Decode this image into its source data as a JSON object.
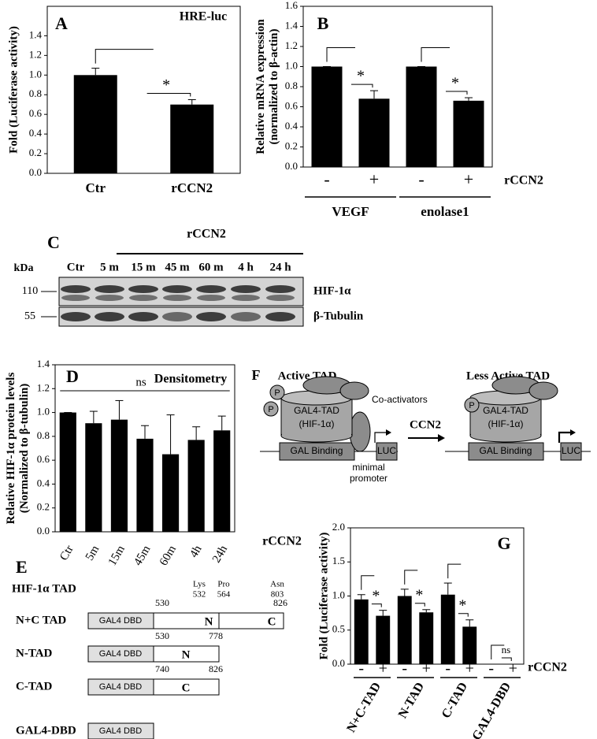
{
  "chart_data": [
    {
      "type": "bar",
      "panel": "A",
      "title": "HRE-luc",
      "y_label": [
        "Fold (Luciferase activity)"
      ],
      "categories": [
        "Ctr",
        "rCCN2"
      ],
      "values": [
        1.0,
        0.7
      ],
      "errors": [
        0.07,
        0.05
      ],
      "significance": [
        null,
        "*"
      ],
      "color": "#000000",
      "ylim": [
        0,
        1.7
      ],
      "yticks": [
        {
          "value": 0,
          "label": "0.0"
        },
        0.2,
        0.4,
        0.6,
        0.8,
        {
          "value": 1,
          "label": "1.0"
        },
        1.2,
        1.4
      ]
    },
    {
      "type": "bar",
      "panel": "B",
      "y_label": [
        "Relative mRNA expression",
        "(normalized to β-actin)"
      ],
      "categories": [
        "-",
        "+",
        "-",
        "+"
      ],
      "values": [
        1.0,
        0.68,
        1.0,
        0.66
      ],
      "errors": [
        0,
        0.08,
        0,
        0.03
      ],
      "significance": [
        null,
        "*",
        null,
        "*"
      ],
      "groups": [
        "VEGF",
        "enolase1"
      ],
      "x_label": "rCCN2",
      "color": "#000000",
      "ylim": [
        0,
        1.6
      ],
      "yticks": [
        {
          "value": 0,
          "label": "0.0"
        },
        0.2,
        0.4,
        0.6,
        0.8,
        {
          "value": 1,
          "label": "1.0"
        },
        1.2,
        1.4,
        1.6
      ]
    },
    {
      "type": "bar",
      "panel": "D",
      "title": "Densitometry",
      "annotation": "ns",
      "y_label": [
        "Relative HIF-1α protein levels",
        "(Normalized to β-tubulin)"
      ],
      "categories": [
        "Ctr",
        "5m",
        "15m",
        "45m",
        "60m",
        "4h",
        "24h"
      ],
      "values": [
        1.0,
        0.91,
        0.94,
        0.78,
        0.65,
        0.77,
        0.85
      ],
      "errors": [
        0,
        0.1,
        0.16,
        0.11,
        0.33,
        0.11,
        0.12
      ],
      "x_label": "rCCN2",
      "color": "#000000",
      "ylim": [
        0,
        1.4
      ],
      "yticks": [
        {
          "value": 0,
          "label": "0.0"
        },
        0.2,
        0.4,
        0.6,
        0.8,
        {
          "value": 1,
          "label": "1.0"
        },
        1.2,
        1.4
      ]
    },
    {
      "type": "bar",
      "panel": "G",
      "y_label": [
        "Fold (Luciferase activity)"
      ],
      "categories": [
        "-",
        "+",
        "-",
        "+",
        "-",
        "+",
        "-",
        "+"
      ],
      "values": [
        0.95,
        0.71,
        1.0,
        0.76,
        1.02,
        0.55,
        0,
        0
      ],
      "errors": [
        0.07,
        0.08,
        0.1,
        0.04,
        0.17,
        0.1,
        0,
        0
      ],
      "significance": [
        null,
        "*",
        null,
        "*",
        null,
        "*",
        null,
        "ns"
      ],
      "groups": [
        "N+C-TAD",
        "N-TAD",
        "C-TAD",
        "GAL4-DBD"
      ],
      "x_label": "rCCN2",
      "color": "#000000",
      "ylim": [
        0,
        2
      ],
      "yticks": [
        {
          "value": 0,
          "label": "0.0"
        },
        0.5,
        {
          "value": 1,
          "label": "1.0"
        },
        1.5,
        {
          "value": 2,
          "label": "2.0"
        }
      ]
    }
  ],
  "blot": {
    "panel": "C",
    "treatment": "rCCN2",
    "unit": "kDa",
    "lanes": [
      "Ctr",
      "5 m",
      "15 m",
      "45 m",
      "60 m",
      "4 h",
      "24 h"
    ],
    "markers": [
      "110",
      "55"
    ],
    "proteins": [
      "HIF-1α",
      "β-Tubulin"
    ]
  },
  "panel_e": {
    "panel": "E",
    "heading": "HIF-1α TAD",
    "domain": "GAL4 DBD",
    "rows": [
      {
        "label": "N+C TAD",
        "start": "530",
        "end": "826",
        "segments": [
          "N",
          "C"
        ],
        "sites": [
          {
            "residue": "Lys",
            "position": "532"
          },
          {
            "residue": "Pro",
            "position": "564"
          },
          {
            "residue": "Asn",
            "position": "803"
          }
        ]
      },
      {
        "label": "N-TAD",
        "start": "530",
        "end": "778",
        "segments": [
          "N"
        ]
      },
      {
        "label": "C-TAD",
        "start": "740",
        "end": "826",
        "segments": [
          "C"
        ]
      },
      {
        "label": "GAL4-DBD"
      }
    ]
  },
  "panel_f": {
    "panel": "F",
    "states": [
      "Active TAD",
      "Less Active TAD"
    ],
    "coactivators": "Co-activators",
    "arrow": "CCN2",
    "phospho": "P",
    "tad": "GAL4-TAD",
    "hif": "(HIF-1α)",
    "binding": "GAL Binding",
    "reporter": "LUC",
    "promoter": [
      "minimal",
      "promoter"
    ]
  }
}
